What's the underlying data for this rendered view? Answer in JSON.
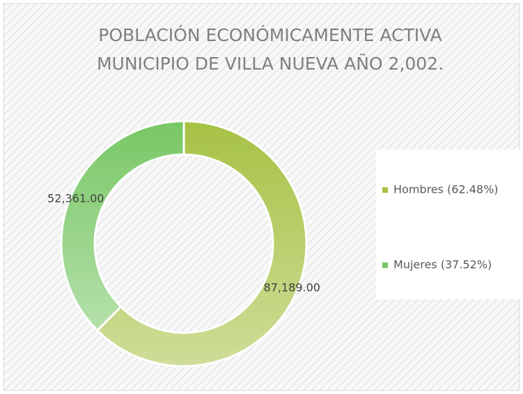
{
  "chart_data": {
    "type": "pie",
    "donut": true,
    "title": [
      "POBLACIÓN ECONÓMICAMENTE ACTIVA",
      "MUNICIPIO DE VILLA NUEVA AÑO 2,002."
    ],
    "categories": [
      "Hombres (62.48%)",
      "Mujeres (37.52%)"
    ],
    "values": [
      87189,
      52361
    ],
    "value_labels": [
      "87,189.00",
      "52,361.00"
    ],
    "colors": [
      "#a6c244",
      "#78c765"
    ],
    "legend": "right"
  }
}
